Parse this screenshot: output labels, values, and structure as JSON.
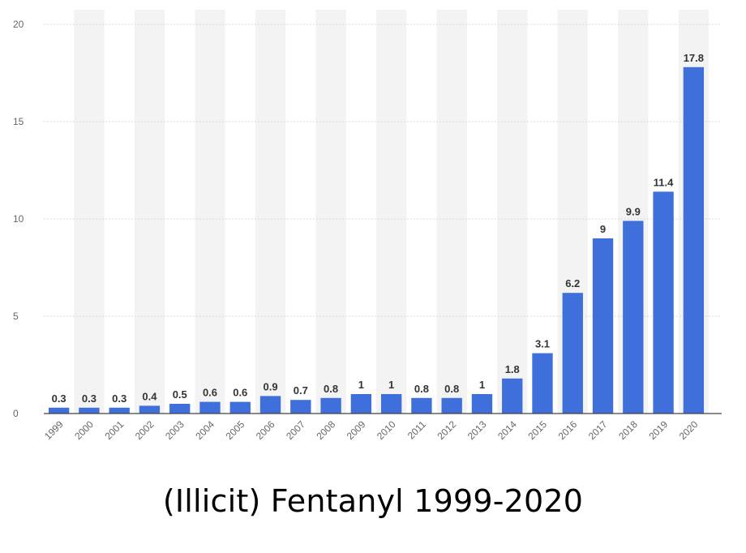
{
  "chart_data": {
    "type": "bar",
    "title": "(Illicit) Fentanyl 1999-2020",
    "xlabel": "",
    "ylabel": "",
    "ylim": [
      0,
      20
    ],
    "yticks": [
      0,
      5,
      10,
      15,
      20
    ],
    "grid": true,
    "categories": [
      "1999",
      "2000",
      "2001",
      "2002",
      "2003",
      "2004",
      "2005",
      "2006",
      "2007",
      "2008",
      "2009",
      "2010",
      "2011",
      "2012",
      "2013",
      "2014",
      "2015",
      "2016",
      "2017",
      "2018",
      "2019",
      "2020"
    ],
    "values": [
      0.3,
      0.3,
      0.3,
      0.4,
      0.5,
      0.6,
      0.6,
      0.9,
      0.7,
      0.8,
      1,
      1,
      0.8,
      0.8,
      1,
      1.8,
      3.1,
      6.2,
      9,
      9.9,
      11.4,
      17.8
    ],
    "bar_color": "#3f6fdb",
    "band_color": "#f3f3f3"
  }
}
